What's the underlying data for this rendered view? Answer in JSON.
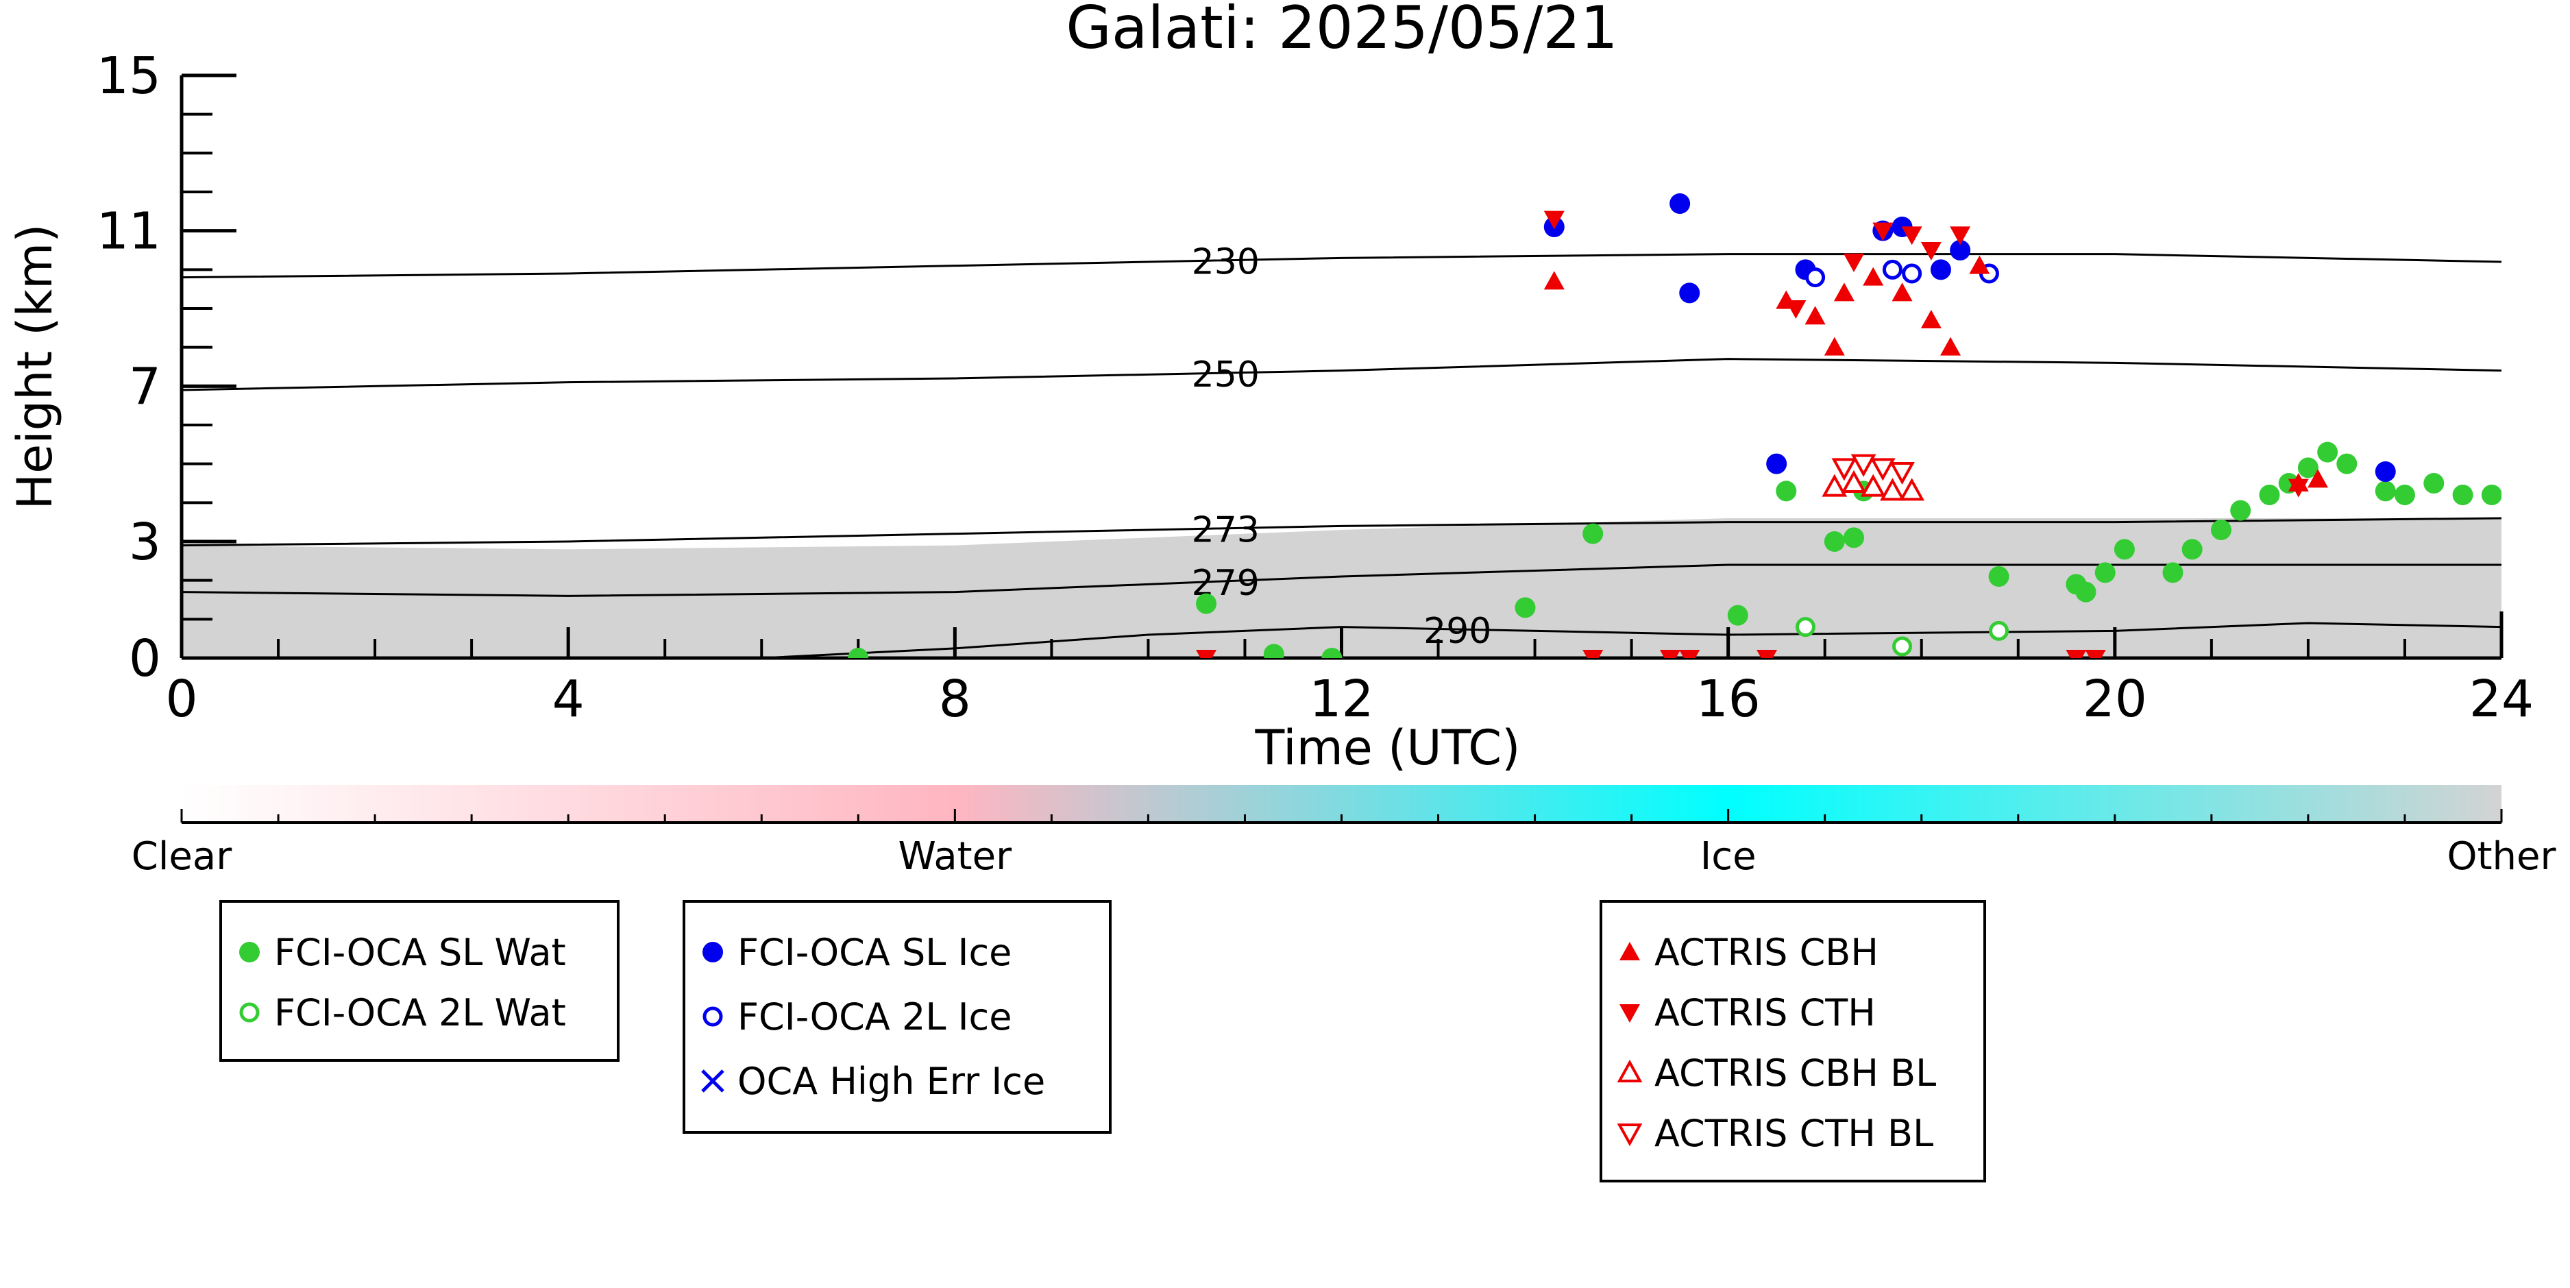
{
  "chart_data": {
    "type": "scatter",
    "title": "Galati: 2025/05/21",
    "xlabel": "Time (UTC)",
    "ylabel": "Height (km)",
    "xlim": [
      0,
      24
    ],
    "ylim": [
      0,
      15
    ],
    "xticks": [
      0,
      4,
      8,
      12,
      16,
      20,
      24
    ],
    "yticks": [
      0,
      3,
      7,
      11,
      15
    ],
    "background_color": "#d3d3d3",
    "colorbar": {
      "labels": [
        "Clear",
        "Water",
        "Ice",
        "Other"
      ],
      "colors": [
        "#ffffff",
        "#ffb6c1",
        "#00ffff",
        "#d3d3d3"
      ]
    },
    "contours": [
      {
        "label": "230",
        "x": [
          0,
          4,
          8,
          12,
          16,
          20,
          24
        ],
        "y": [
          9.8,
          9.9,
          10.1,
          10.3,
          10.4,
          10.4,
          10.2
        ]
      },
      {
        "label": "250",
        "x": [
          0,
          4,
          8,
          12,
          16,
          20,
          24
        ],
        "y": [
          6.9,
          7.1,
          7.2,
          7.4,
          7.7,
          7.6,
          7.4
        ]
      },
      {
        "label": "273",
        "x": [
          0,
          4,
          8,
          12,
          16,
          20,
          24
        ],
        "y": [
          2.9,
          3.0,
          3.2,
          3.4,
          3.5,
          3.5,
          3.6
        ]
      },
      {
        "label": "279",
        "x": [
          0,
          4,
          8,
          12,
          16,
          20,
          24
        ],
        "y": [
          1.7,
          1.6,
          1.7,
          2.1,
          2.4,
          2.4,
          2.4
        ]
      },
      {
        "label": "290",
        "x": [
          0,
          6,
          8,
          10,
          12,
          16,
          20,
          22,
          24
        ],
        "y": [
          0,
          0,
          0.25,
          0.6,
          0.8,
          0.6,
          0.7,
          0.9,
          0.8
        ]
      }
    ],
    "series": [
      {
        "name": "FCI-OCA SL Wat",
        "color": "#33cc33",
        "marker": "filled-circle",
        "x": [
          7.0,
          10.6,
          11.3,
          11.9,
          13.9,
          14.6,
          16.1,
          16.6,
          17.1,
          17.3,
          17.4,
          18.8,
          19.6,
          19.7,
          19.9,
          20.1,
          20.6,
          20.8,
          21.1,
          21.3,
          21.6,
          21.8,
          22.0,
          22.2,
          22.4,
          22.8,
          23.0,
          23.3,
          23.6,
          23.9
        ],
        "y": [
          0.0,
          1.4,
          0.1,
          0.0,
          1.3,
          3.2,
          1.1,
          4.3,
          3.0,
          3.1,
          4.3,
          2.1,
          1.9,
          1.7,
          2.2,
          2.8,
          2.2,
          2.8,
          3.3,
          3.8,
          4.2,
          4.5,
          4.9,
          5.3,
          5.0,
          4.3,
          4.2,
          4.5,
          4.2,
          4.2
        ]
      },
      {
        "name": "FCI-OCA 2L Wat",
        "color": "#33cc33",
        "marker": "open-circle",
        "x": [
          16.8,
          17.8,
          18.8
        ],
        "y": [
          0.8,
          0.3,
          0.7
        ]
      },
      {
        "name": "FCI-OCA SL Ice",
        "color": "#0000ee",
        "marker": "filled-circle",
        "x": [
          14.2,
          15.5,
          15.6,
          16.5,
          16.8,
          17.6,
          17.8,
          18.2,
          18.4,
          22.8
        ],
        "y": [
          11.1,
          11.7,
          9.4,
          5.0,
          10.0,
          11.0,
          11.1,
          10.0,
          10.5,
          4.8
        ]
      },
      {
        "name": "FCI-OCA 2L Ice",
        "color": "#0000ee",
        "marker": "open-circle",
        "x": [
          16.9,
          17.7,
          17.9,
          18.7
        ],
        "y": [
          9.8,
          10.0,
          9.9,
          9.9
        ]
      },
      {
        "name": "OCA High Err Ice",
        "color": "#0000ee",
        "marker": "x",
        "x": [],
        "y": []
      },
      {
        "name": "ACTRIS CBH",
        "color": "#ee0000",
        "marker": "triangle-up",
        "x": [
          14.2,
          16.6,
          16.9,
          17.1,
          17.2,
          17.5,
          17.8,
          18.1,
          18.3,
          18.6,
          21.9,
          22.1
        ],
        "y": [
          9.7,
          9.2,
          8.8,
          8.0,
          9.4,
          9.8,
          9.4,
          8.7,
          8.0,
          10.1,
          4.5,
          4.6
        ]
      },
      {
        "name": "ACTRIS CTH",
        "color": "#ee0000",
        "marker": "triangle-down",
        "x": [
          10.6,
          14.2,
          14.6,
          15.4,
          15.6,
          16.4,
          16.7,
          17.3,
          17.6,
          17.9,
          18.1,
          18.4,
          19.6,
          19.8,
          21.9
        ],
        "y": [
          0.0,
          11.3,
          0.0,
          0.0,
          0.0,
          0.0,
          9.0,
          10.2,
          11.0,
          10.9,
          10.5,
          10.9,
          0.0,
          0.0,
          4.4
        ]
      },
      {
        "name": "ACTRIS CBH BL",
        "color": "#ee0000",
        "marker": "open-triangle-up",
        "x": [
          17.1,
          17.3,
          17.5,
          17.7,
          17.9
        ],
        "y": [
          4.4,
          4.5,
          4.4,
          4.3,
          4.3
        ]
      },
      {
        "name": "ACTRIS CTH BL",
        "color": "#ee0000",
        "marker": "open-triangle-down",
        "x": [
          17.2,
          17.4,
          17.6,
          17.8
        ],
        "y": [
          4.9,
          5.0,
          4.9,
          4.8
        ]
      }
    ],
    "legends": [
      [
        "FCI-OCA SL Wat",
        "FCI-OCA 2L Wat"
      ],
      [
        "FCI-OCA SL Ice",
        "FCI-OCA 2L Ice",
        "OCA High Err Ice"
      ],
      [
        "ACTRIS CBH",
        "ACTRIS CTH",
        "ACTRIS CBH BL",
        "ACTRIS CTH BL"
      ]
    ]
  }
}
